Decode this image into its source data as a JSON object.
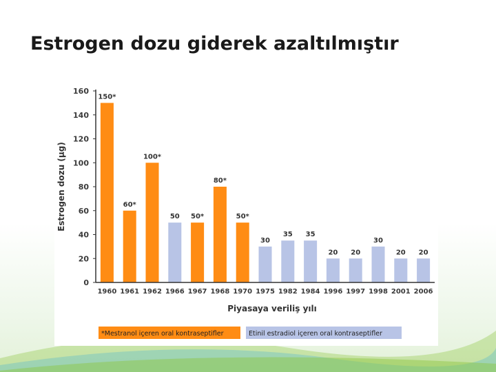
{
  "slide": {
    "title": "Estrogen dozu giderek azaltılmıştır"
  },
  "colors": {
    "mestranol": "#ff8c14",
    "estradiol": "#b8c4e6",
    "accent_green": "#8cc63f",
    "accent_blue": "#29a9e0"
  },
  "chart_data": {
    "type": "bar",
    "categories": [
      "1960",
      "1961",
      "1962",
      "1966",
      "1967",
      "1968",
      "1970",
      "1975",
      "1982",
      "1984",
      "1996",
      "1997",
      "1998",
      "2001",
      "2006"
    ],
    "values": [
      150,
      60,
      100,
      50,
      50,
      80,
      50,
      30,
      35,
      35,
      20,
      20,
      30,
      20,
      20
    ],
    "data_labels": [
      "150*",
      "60*",
      "100*",
      "50",
      "50*",
      "80*",
      "50*",
      "30",
      "35",
      "35",
      "20",
      "20",
      "30",
      "20",
      "20"
    ],
    "groups": [
      "mestranol",
      "mestranol",
      "mestranol",
      "estradiol",
      "mestranol",
      "mestranol",
      "mestranol",
      "estradiol",
      "estradiol",
      "estradiol",
      "estradiol",
      "estradiol",
      "estradiol",
      "estradiol",
      "estradiol"
    ],
    "xlabel": "Piyasaya veriliş yılı",
    "ylabel": "Estrogen dozu (µg)",
    "ylim": [
      0,
      160
    ],
    "yticks": [
      0,
      20,
      40,
      60,
      80,
      100,
      120,
      140,
      160
    ],
    "grid": false,
    "legend": {
      "position": "bottom",
      "items": [
        {
          "label": "*Mestranol içeren oral kontraseptifler",
          "group": "mestranol"
        },
        {
          "label": "Etinil estradiol içeren oral kontraseptifler",
          "group": "estradiol"
        }
      ]
    }
  }
}
